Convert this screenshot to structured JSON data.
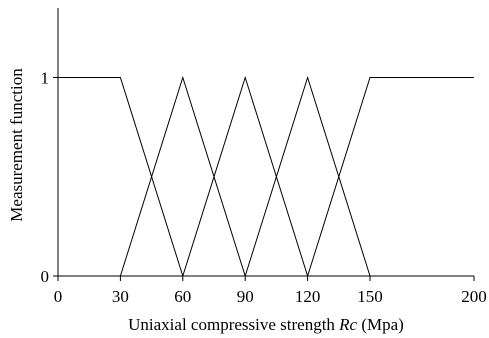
{
  "chart_data": {
    "type": "line",
    "xlabel_prefix": "Uniaxial compressive strength ",
    "xlabel_var": "Rc",
    "xlabel_suffix": " (Mpa)",
    "ylabel": "Measurement function",
    "xlim": [
      0,
      200
    ],
    "ylim": [
      0,
      1.35
    ],
    "x_ticks": [
      0,
      30,
      60,
      90,
      120,
      150,
      200
    ],
    "y_ticks": [
      0,
      1
    ],
    "grid": false,
    "series": [
      {
        "x": [
          0,
          30,
          60
        ],
        "y": [
          1,
          1,
          0
        ]
      },
      {
        "x": [
          30,
          60,
          90
        ],
        "y": [
          0,
          1,
          0
        ]
      },
      {
        "x": [
          60,
          90,
          120
        ],
        "y": [
          0,
          1,
          0
        ]
      },
      {
        "x": [
          90,
          120,
          150
        ],
        "y": [
          0,
          1,
          0
        ]
      },
      {
        "x": [
          120,
          150,
          200
        ],
        "y": [
          0,
          1,
          1
        ]
      },
      {
        "x": [
          0,
          30
        ],
        "y": [
          0,
          0
        ]
      },
      {
        "x": [
          150,
          200
        ],
        "y": [
          0,
          0
        ]
      }
    ]
  }
}
